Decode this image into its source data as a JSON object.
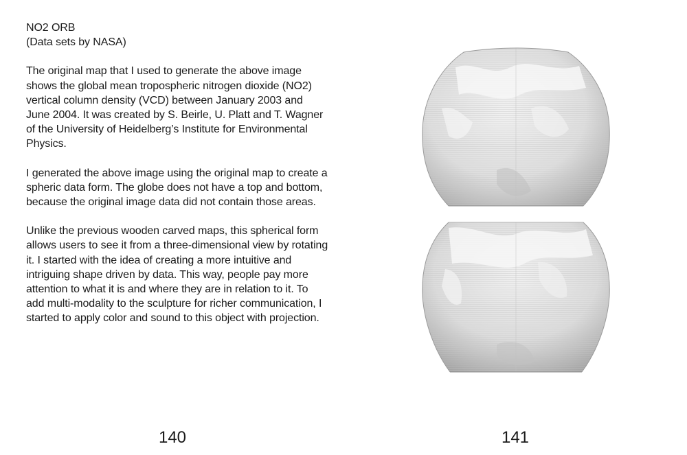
{
  "left_page": {
    "title": "NO2 ORB",
    "subtitle": "(Data sets by NASA)",
    "paragraphs": [
      "The original map that I used to generate the above image shows the global mean tropospheric nitrogen dioxide (NO2) vertical column density (VCD) between January 2003 and June 2004. It was created by S. Beirle, U. Platt and T. Wagner of the University of Heidelberg’s Institute for Environmental Physics.",
      "I generated the above image using the original map  to create a spheric data form. The globe does not have a top and bottom, because the original image data did not contain those areas.",
      "Unlike the previous wooden carved maps, this spherical form allows users to see it from a three-dimensional view by rotating it. I started with the idea of creating a more intuitive and intriguing shape driven by data. This way, people pay more attention to what it is and where they are in relation to it. To add multi-modality to the sculpture for richer communication, I started to apply color and sound to  this object with projection."
    ],
    "page_number": "140"
  },
  "right_page": {
    "page_number": "141"
  },
  "colors": {
    "text": "#1a1a1a",
    "orb_fill": "#dcdcdc",
    "orb_highlight": "#f4f4f4",
    "orb_shadow": "#9a9a9a"
  }
}
